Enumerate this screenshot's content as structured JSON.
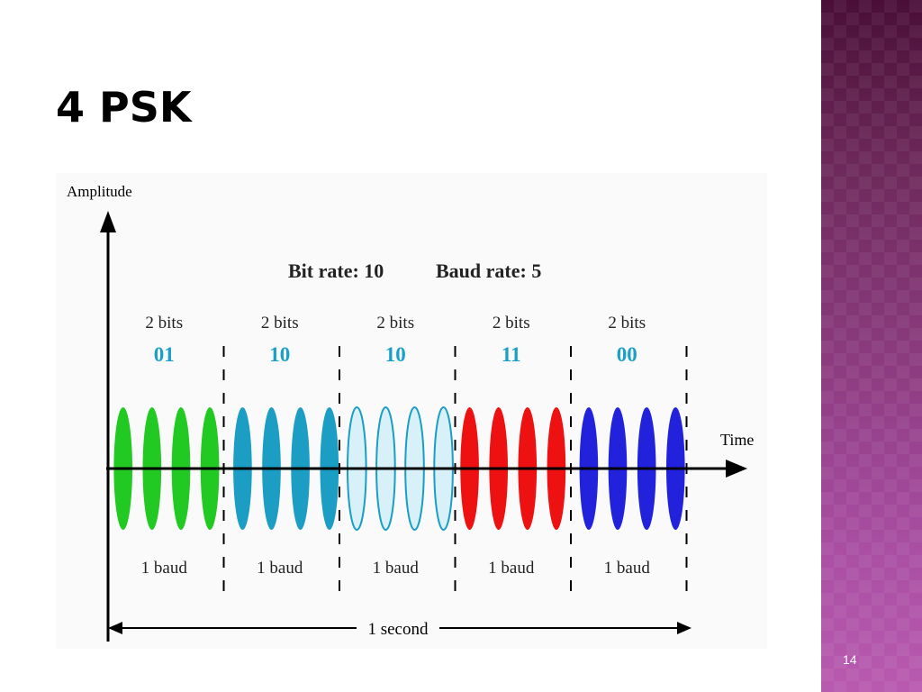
{
  "slide": {
    "title": "4 PSK",
    "page_number": "14"
  },
  "diagram": {
    "y_axis_label": "Amplitude",
    "x_axis_label": "Time",
    "bit_rate_label": "Bit rate: 10",
    "baud_rate_label": "Baud rate: 5",
    "duration_label": "1 second",
    "segments": [
      {
        "bits_label": "2 bits",
        "bits": "01",
        "baud_label": "1 baud",
        "color": "#22c922",
        "fill": "solid"
      },
      {
        "bits_label": "2 bits",
        "bits": "10",
        "baud_label": "1 baud",
        "color": "#1b9dc4",
        "fill": "solid"
      },
      {
        "bits_label": "2 bits",
        "bits": "10",
        "baud_label": "1 baud",
        "color": "#1b9dc4",
        "fill": "outline"
      },
      {
        "bits_label": "2 bits",
        "bits": "11",
        "baud_label": "1 baud",
        "color": "#ee1111",
        "fill": "solid"
      },
      {
        "bits_label": "2 bits",
        "bits": "00",
        "baud_label": "1 baud",
        "color": "#2222dd",
        "fill": "solid"
      }
    ],
    "colors": {
      "bit_value_text": "#1aa0c8",
      "axis": "#000000"
    }
  }
}
